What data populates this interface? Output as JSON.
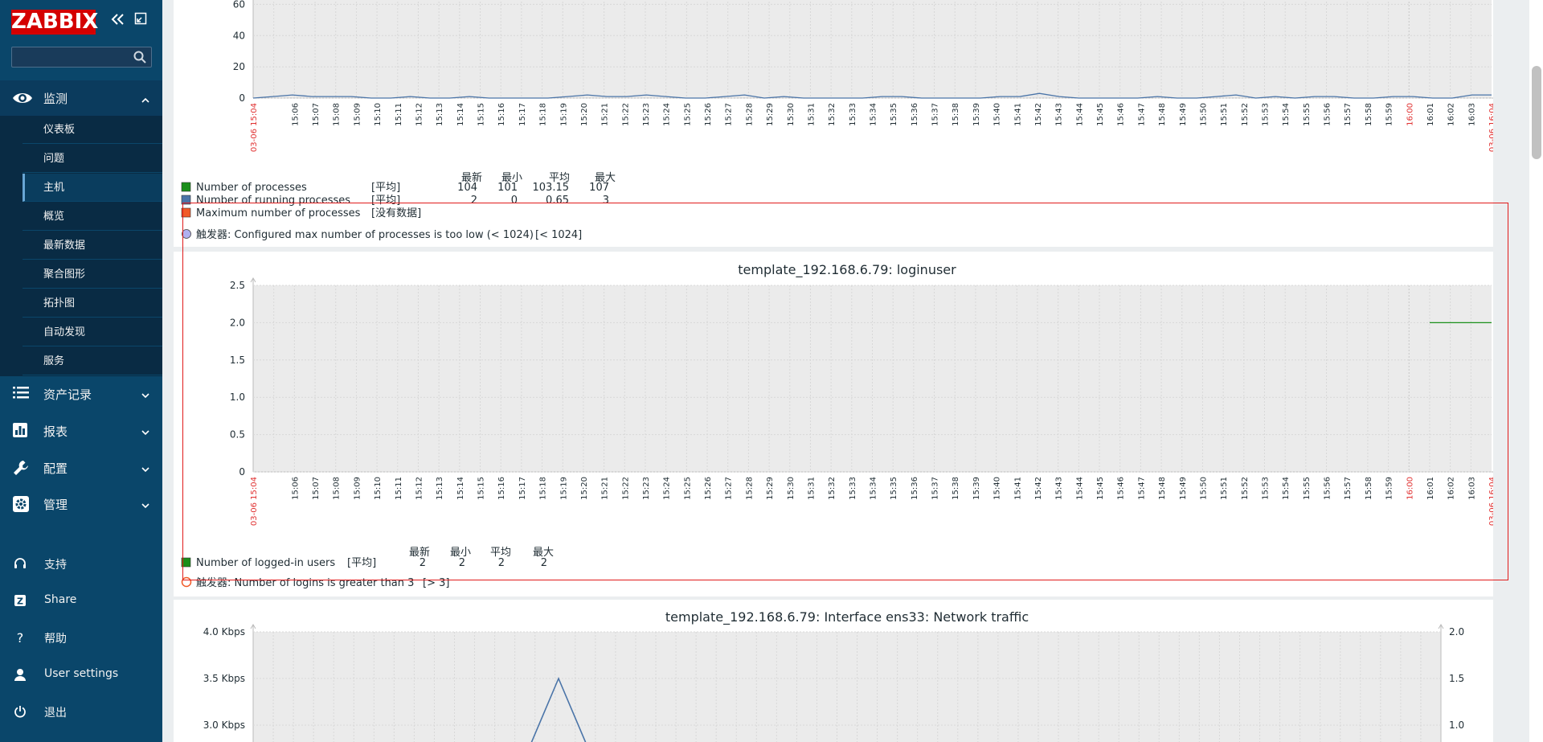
{
  "app": {
    "logo": "ZABBIX"
  },
  "sidebar": {
    "search": {
      "value": "",
      "placeholder": ""
    },
    "monitor": {
      "label": "监测",
      "icon": "eye-icon"
    },
    "submenu": [
      "仪表板",
      "问题",
      "主机",
      "概览",
      "最新数据",
      "聚合图形",
      "拓扑图",
      "自动发现",
      "服务"
    ],
    "active_submenu": "主机",
    "menus": [
      {
        "label": "资产记录",
        "icon": "list-icon"
      },
      {
        "label": "报表",
        "icon": "bar-chart-icon"
      },
      {
        "label": "配置",
        "icon": "wrench-icon"
      },
      {
        "label": "管理",
        "icon": "gear-icon"
      }
    ],
    "bottom": [
      {
        "label": "支持",
        "icon": "headset-icon"
      },
      {
        "label": "Share",
        "icon": "share-icon"
      },
      {
        "label": "帮助",
        "icon": "help-icon"
      },
      {
        "label": "User settings",
        "icon": "user-icon"
      },
      {
        "label": "退出",
        "icon": "power-icon"
      }
    ]
  },
  "time_axis": {
    "start_label": "03-06 15:04",
    "end_label": "03-06 16:04",
    "labels": [
      "15:06",
      "15:07",
      "15:08",
      "15:09",
      "15:10",
      "15:11",
      "15:12",
      "15:13",
      "15:14",
      "15:15",
      "15:16",
      "15:17",
      "15:18",
      "15:19",
      "15:20",
      "15:21",
      "15:22",
      "15:23",
      "15:24",
      "15:25",
      "15:26",
      "15:27",
      "15:28",
      "15:29",
      "15:30",
      "15:31",
      "15:32",
      "15:33",
      "15:34",
      "15:35",
      "15:36",
      "15:37",
      "15:38",
      "15:39",
      "15:40",
      "15:41",
      "15:42",
      "15:43",
      "15:44",
      "15:45",
      "15:46",
      "15:47",
      "15:48",
      "15:49",
      "15:50",
      "15:51",
      "15:52",
      "15:53",
      "15:54",
      "15:55",
      "15:56",
      "15:57",
      "15:58",
      "15:59",
      "16:00",
      "16:01",
      "16:02",
      "16:03"
    ],
    "highlight_label": "16:00",
    "highlight_color": "#e03030"
  },
  "legend_headers": {
    "latest": "最新",
    "min": "最小",
    "avg": "平均",
    "max": "最大"
  },
  "graphs": {
    "processes": {
      "y_ticks": [
        "0",
        "20",
        "40",
        "60"
      ],
      "chart_data": {
        "type": "line",
        "ylim": [
          0,
          70
        ],
        "series": [
          {
            "name": "Number of processes",
            "func": "[平均]",
            "latest": "104",
            "min": "101",
            "avg": "103.15",
            "max": "107",
            "color": "#1a8f1a"
          },
          {
            "name": "Number of running processes",
            "func": "[平均]",
            "latest": "2",
            "min": "0",
            "avg": "0.65",
            "max": "3",
            "color": "#4a74a8",
            "values": [
              0,
              1,
              2,
              1,
              1,
              1,
              0,
              0,
              1,
              0,
              0,
              1,
              0,
              0,
              0,
              0,
              1,
              2,
              1,
              1,
              2,
              1,
              0,
              0,
              1,
              2,
              0,
              1,
              0,
              0,
              0,
              0,
              1,
              1,
              0,
              0,
              0,
              0,
              1,
              1,
              3,
              1,
              0,
              0,
              0,
              0,
              1,
              0,
              0,
              1,
              2,
              0,
              1,
              0,
              1,
              1,
              0,
              0,
              1,
              1,
              0,
              0,
              2,
              2
            ]
          },
          {
            "name": "Maximum number of processes",
            "func": "[没有数据]",
            "color": "#f05a28"
          }
        ],
        "trigger": {
          "label": "触发器: Configured max number of processes is too low (< 1024)",
          "cond": "[< 1024]",
          "color": "#b0b0f0"
        }
      }
    },
    "loginuser": {
      "title": "template_192.168.6.79: loginuser",
      "y_ticks": [
        "0",
        "0.5",
        "1.0",
        "1.5",
        "2.0",
        "2.5"
      ],
      "chart_data": {
        "type": "line",
        "ylim": [
          0,
          2.5
        ],
        "series": [
          {
            "name": "Number of logged-in users",
            "func": "[平均]",
            "latest": "2",
            "min": "2",
            "avg": "2",
            "max": "2",
            "color": "#1a8f1a",
            "x_from_min": 57,
            "x_to_min": 60,
            "value": 2
          }
        ],
        "trigger": {
          "label": "触发器: Number of logins is greater than 3",
          "cond": "[> 3]",
          "color": "#f05a28"
        }
      }
    },
    "network": {
      "title": "template_192.168.6.79: Interface ens33: Network traffic",
      "y_left": [
        "4.0 Kbps",
        "3.5 Kbps",
        "3.0 Kbps"
      ],
      "y_right": [
        "2.0",
        "1.5",
        "1.0"
      ],
      "chart_data": {
        "type": "line",
        "peak_value": 3.5,
        "peak_unit": "Kbps"
      }
    }
  }
}
